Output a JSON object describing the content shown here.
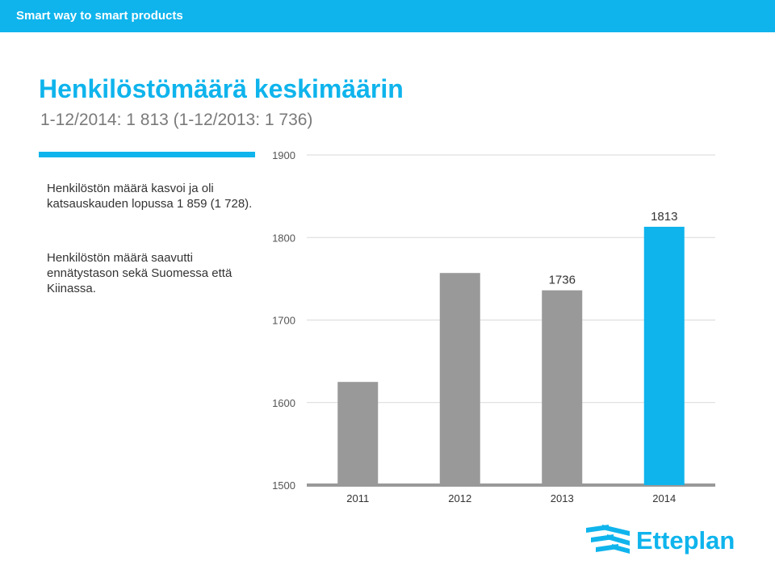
{
  "header": {
    "tagline": "Smart way to smart products"
  },
  "slide": {
    "title": "Henkilöstömäärä keskimäärin",
    "subtitle": "1-12/2014: 1 813 (1-12/2013: 1 736)",
    "paragraph1": "Henkilöstön määrä kasvoi ja oli katsauskauden lopussa 1 859 (1 728).",
    "paragraph2": "Henkilöstön määrä saavutti ennätystason sekä Suomessa että Kiinassa."
  },
  "brand": {
    "logo_text": "Etteplan",
    "accent_color": "#0fb4ec",
    "bar_color": "#999999"
  },
  "chart_data": {
    "type": "bar",
    "categories": [
      "2011",
      "2012",
      "2013",
      "2014"
    ],
    "values": [
      1625,
      1757,
      1736,
      1813
    ],
    "data_labels": [
      "",
      "",
      "1736",
      "1813"
    ],
    "bar_colors": [
      "#999999",
      "#999999",
      "#999999",
      "#0fb4ec"
    ],
    "ylim": [
      1500,
      1900
    ],
    "yticks": [
      "1500",
      "1600",
      "1700",
      "1800",
      "1900"
    ],
    "grid": true,
    "title": "",
    "xlabel": "",
    "ylabel": ""
  }
}
